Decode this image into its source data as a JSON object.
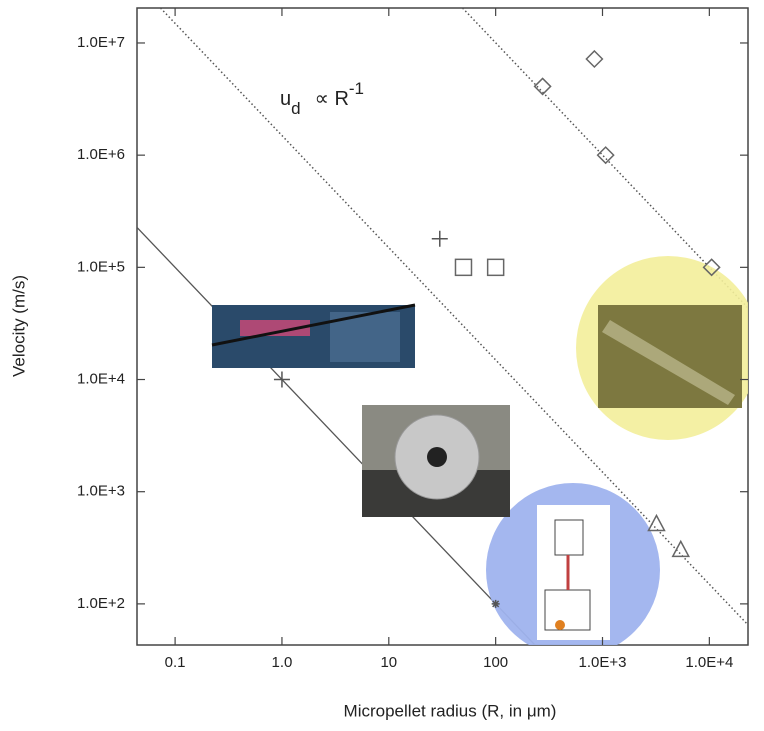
{
  "chart_data": {
    "type": "scatter",
    "x_label": "Micropellet radius (R, in μm)",
    "y_label": "Velocity (m/s)",
    "annotation": {
      "base": "u",
      "sub": "d",
      "mid": "∝ R",
      "sup": "-1"
    },
    "xscale": "log",
    "yscale": "log",
    "xlim": [
      0.044,
      23000
    ],
    "ylim": [
      43,
      20500000
    ],
    "xticks": [
      0.1,
      {
        "value": 1,
        "label": "1.0"
      },
      10,
      100,
      {
        "value": 1000,
        "label": "1.0E+3"
      },
      {
        "value": 10000,
        "label": "1.0E+4"
      }
    ],
    "yticks": [
      {
        "value": 100,
        "label": "1.0E+2"
      },
      {
        "value": 1000,
        "label": "1.0E+3"
      },
      {
        "value": 10000,
        "label": "1.0E+4"
      },
      {
        "value": 100000,
        "label": "1.0E+5"
      },
      {
        "value": 1000000,
        "label": "1.0E+6"
      },
      {
        "value": 10000000,
        "label": "1.0E+7"
      }
    ],
    "series": [
      {
        "marker": "diamond",
        "color": "#666666",
        "x": [
          275,
          840,
          1070,
          10500
        ],
        "values": [
          4100000,
          7200000,
          1000000,
          100000
        ]
      },
      {
        "marker": "square",
        "color": "#666666",
        "x": [
          50,
          100
        ],
        "values": [
          100000,
          100000
        ]
      },
      {
        "marker": "plus",
        "color": "#555555",
        "x": [
          30,
          1
        ],
        "values": [
          180000,
          10000
        ]
      },
      {
        "marker": "triangle",
        "color": "#666666",
        "x": [
          3200,
          5400
        ],
        "values": [
          510,
          300
        ]
      },
      {
        "marker": "star",
        "color": "#555555",
        "x": [
          100
        ],
        "values": [
          100
        ]
      }
    ],
    "lines": [
      {
        "style": "solid",
        "color": "#555555",
        "x": [
          0.044,
          233
        ],
        "values": [
          227000,
          43
        ]
      },
      {
        "style": "dotted",
        "color": "#555555",
        "x": [
          0.073,
          23000
        ],
        "values": [
          20500000,
          65
        ]
      },
      {
        "style": "dotted",
        "color": "#555555",
        "x": [
          49,
          23000
        ],
        "values": [
          20500000,
          43500
        ]
      }
    ]
  }
}
